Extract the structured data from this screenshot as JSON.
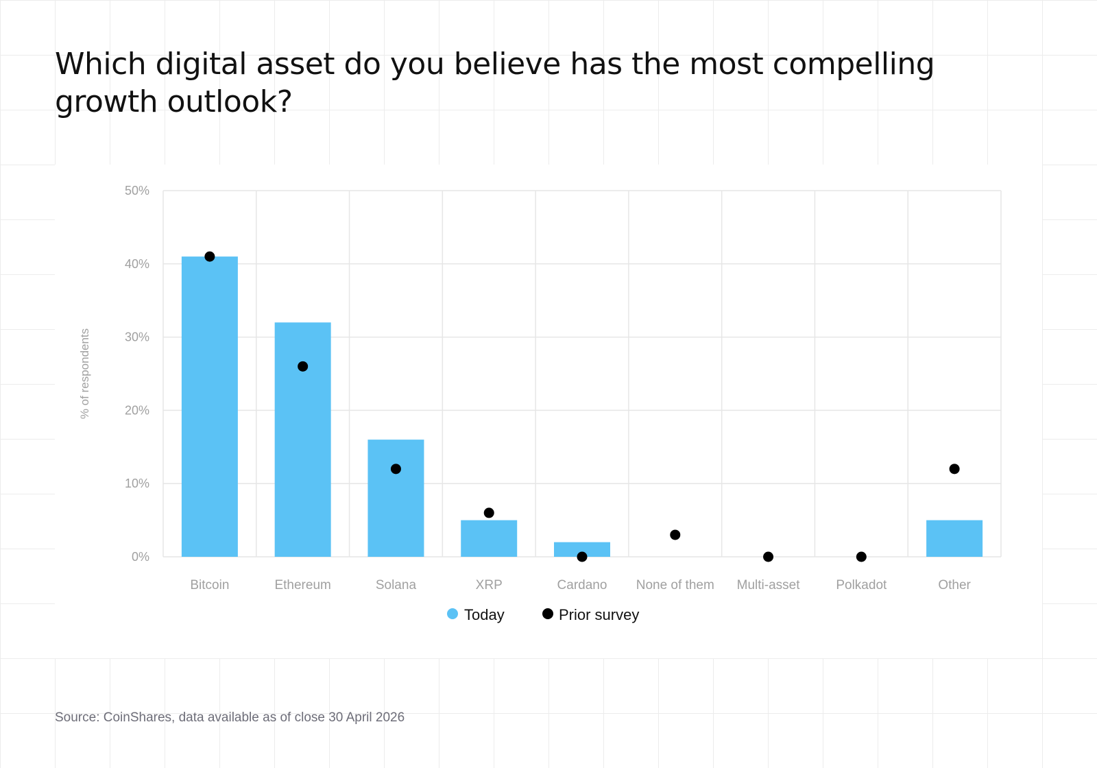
{
  "title": "Which digital asset do you believe has the most compelling growth outlook?",
  "source": "Source: CoinShares, data available as of close 30 April 2026",
  "colors": {
    "today": "#5bc2f5",
    "prior": "#000000",
    "grid": "#e6e6e6",
    "tick": "#a0a0a0"
  },
  "chart_data": {
    "type": "bar",
    "title": "Which digital asset do you believe has the most compelling growth outlook?",
    "xlabel": "",
    "ylabel": "% of respondents",
    "ylim": [
      0,
      50
    ],
    "yticks": [
      "0%",
      "10%",
      "20%",
      "30%",
      "40%",
      "50%"
    ],
    "ytick_values": [
      0,
      10,
      20,
      30,
      40,
      50
    ],
    "grid": true,
    "legend_position": "bottom-center",
    "categories": [
      "Bitcoin",
      "Ethereum",
      "Solana",
      "XRP",
      "Cardano",
      "None of them",
      "Multi-asset",
      "Polkadot",
      "Other"
    ],
    "series": [
      {
        "name": "Today",
        "type": "bar",
        "values": [
          41,
          32,
          16,
          5,
          2,
          0,
          0,
          0,
          5
        ]
      },
      {
        "name": "Prior survey",
        "type": "scatter",
        "values": [
          41,
          26,
          12,
          6,
          0,
          3,
          0,
          0,
          12
        ]
      }
    ]
  }
}
